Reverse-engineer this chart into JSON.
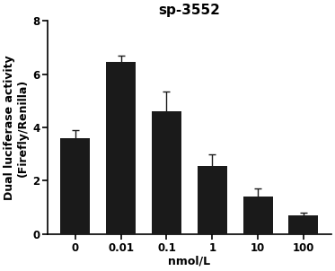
{
  "title": "sp-3552",
  "xlabel": "nmol/L",
  "ylabel": "Dual luciferase activity\n(Firefly/Renilla)",
  "categories": [
    "0",
    "0.01",
    "0.1",
    "1",
    "10",
    "100"
  ],
  "values": [
    3.6,
    6.45,
    4.6,
    2.55,
    1.42,
    0.7
  ],
  "errors": [
    0.28,
    0.25,
    0.75,
    0.45,
    0.28,
    0.1
  ],
  "bar_color": "#1a1a1a",
  "bar_width": 0.65,
  "ylim": [
    0,
    8
  ],
  "yticks": [
    0,
    2,
    4,
    6,
    8
  ],
  "background_color": "#ffffff",
  "title_fontsize": 11,
  "label_fontsize": 9,
  "tick_fontsize": 8.5,
  "capsize": 3
}
